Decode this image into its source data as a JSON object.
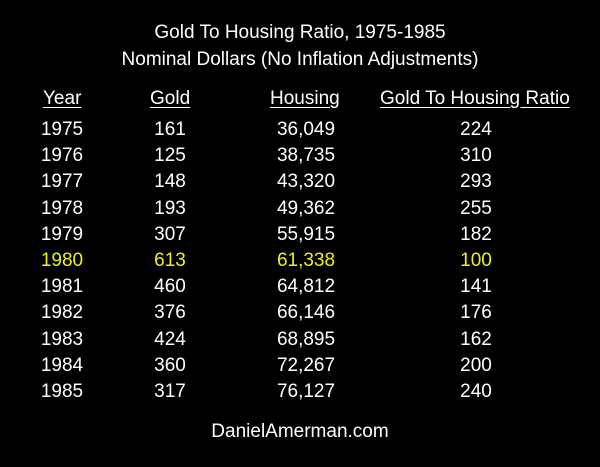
{
  "chart_data": {
    "type": "table",
    "title": "Gold To Housing Ratio, 1975-1985",
    "subtitle": "Nominal Dollars (No Inflation Adjustments)",
    "columns": [
      "Year",
      "Gold",
      "Housing",
      "Gold To Housing Ratio"
    ],
    "rows": [
      {
        "year": "1975",
        "gold": "161",
        "housing": "36,049",
        "ratio": "224",
        "highlight": false
      },
      {
        "year": "1976",
        "gold": "125",
        "housing": "38,735",
        "ratio": "310",
        "highlight": false
      },
      {
        "year": "1977",
        "gold": "148",
        "housing": "43,320",
        "ratio": "293",
        "highlight": false
      },
      {
        "year": "1978",
        "gold": "193",
        "housing": "49,362",
        "ratio": "255",
        "highlight": false
      },
      {
        "year": "1979",
        "gold": "307",
        "housing": "55,915",
        "ratio": "182",
        "highlight": false
      },
      {
        "year": "1980",
        "gold": "613",
        "housing": "61,338",
        "ratio": "100",
        "highlight": true
      },
      {
        "year": "1981",
        "gold": "460",
        "housing": "64,812",
        "ratio": "141",
        "highlight": false
      },
      {
        "year": "1982",
        "gold": "376",
        "housing": "66,146",
        "ratio": "176",
        "highlight": false
      },
      {
        "year": "1983",
        "gold": "424",
        "housing": "68,895",
        "ratio": "162",
        "highlight": false
      },
      {
        "year": "1984",
        "gold": "360",
        "housing": "72,267",
        "ratio": "200",
        "highlight": false
      },
      {
        "year": "1985",
        "gold": "317",
        "housing": "76,127",
        "ratio": "240",
        "highlight": false
      }
    ],
    "footer": "DanielAmerman.com"
  },
  "colors": {
    "background": "#000000",
    "text": "#ffffff",
    "highlight": "#f2ee1a"
  }
}
